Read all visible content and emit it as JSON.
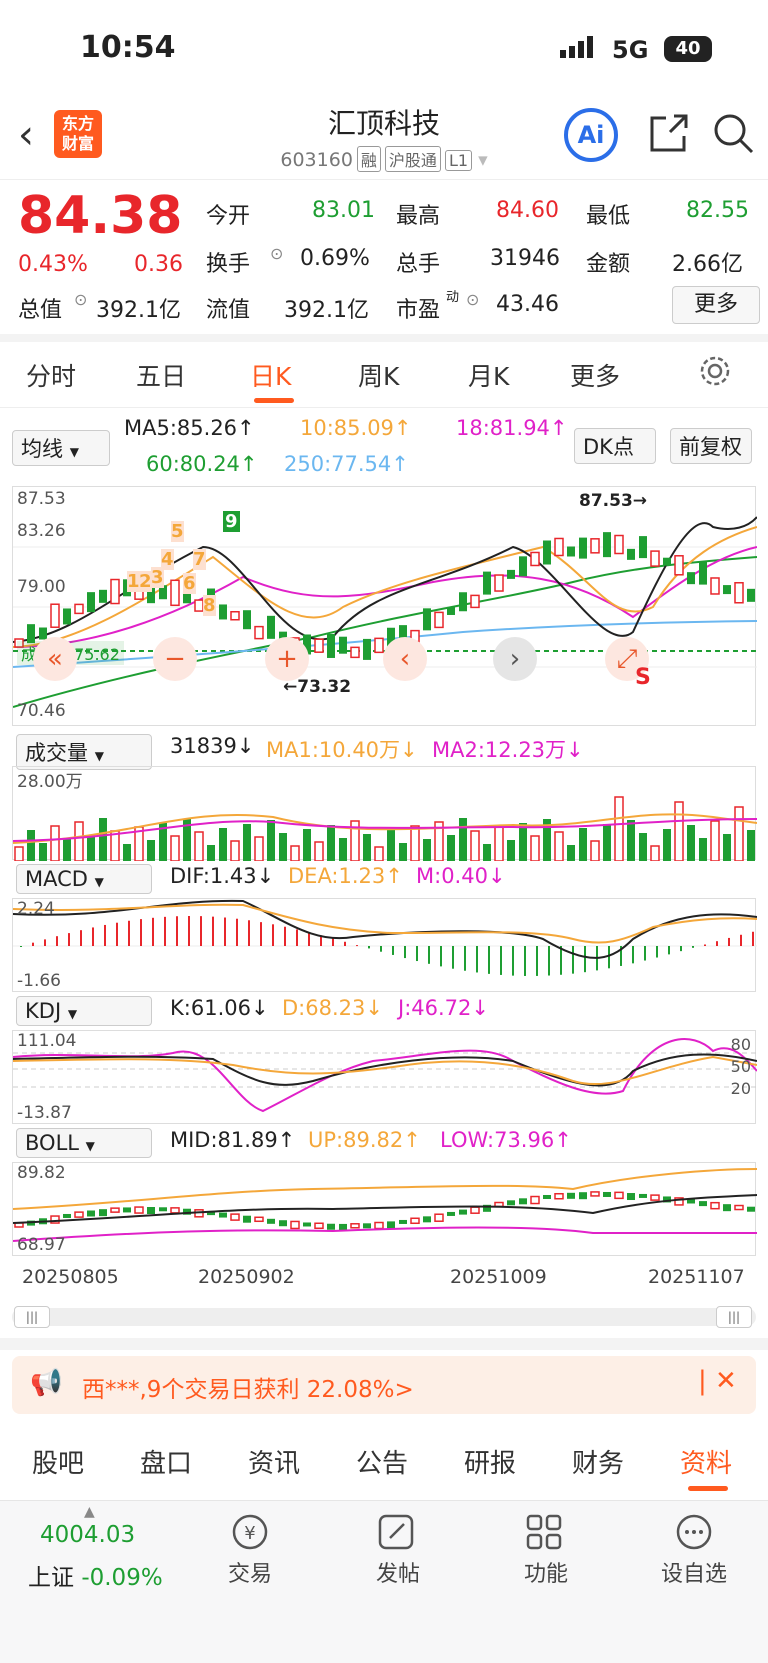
{
  "status_bar": {
    "time": "10:54",
    "network": "5G",
    "battery": "40"
  },
  "header": {
    "logo_line1": "东方",
    "logo_line2": "财富",
    "title": "汇顶科技",
    "code": "603160",
    "tags": [
      "融",
      "沪股通",
      "L1"
    ],
    "ai_label": "Ai"
  },
  "quote": {
    "price": "84.38",
    "change_pct": "0.43%",
    "change": "0.36",
    "open_label": "今开",
    "open": "83.01",
    "high_label": "最高",
    "high": "84.60",
    "low_label": "最低",
    "low": "82.55",
    "turnover_label": "换手",
    "turnover": "0.69%",
    "volume_label": "总手",
    "volume": "31946",
    "amount_label": "金额",
    "amount": "2.66亿",
    "mcap_label": "总值",
    "mcap": "392.1亿",
    "float_label": "流值",
    "float_cap": "392.1亿",
    "pe_label": "市盈",
    "pe_sup": "动",
    "pe": "43.46",
    "more_label": "更多"
  },
  "period_tabs": [
    "分时",
    "五日",
    "日K",
    "周K",
    "月K",
    "更多"
  ],
  "active_tab_index": 2,
  "ma_bar": {
    "selector": "均线",
    "ma5": "MA5:85.26↑",
    "ma10": "10:85.09↑",
    "ma18": "18:81.94↑",
    "ma60": "60:80.24↑",
    "ma250": "250:77.54↑",
    "dk_label": "DK点",
    "adj_label": "前复权"
  },
  "kline_axis": {
    "top": "87.53",
    "mid1": "83.26",
    "mid2": "79.00",
    "bottom": "70.46"
  },
  "kline_annotations": {
    "high_marker": "87.53→",
    "low_marker": "←73.32",
    "cost_label": "成本价",
    "cost_value": "75.62",
    "s_label": "S"
  },
  "signal_numbers": [
    "1",
    "2",
    "3",
    "4",
    "5",
    "6",
    "7",
    "8",
    "9"
  ],
  "volume": {
    "selector": "成交量",
    "value": "31839↓",
    "ma1": "MA1:10.40万↓",
    "ma2": "MA2:12.23万↓",
    "axis": "28.00万"
  },
  "macd": {
    "selector": "MACD",
    "dif": "DIF:1.43↓",
    "dea": "DEA:1.23↑",
    "m": "M:0.40↓",
    "top": "2.24",
    "bottom": "-1.66"
  },
  "kdj": {
    "selector": "KDJ",
    "k": "K:61.06↓",
    "d": "D:68.23↓",
    "j": "J:46.72↓",
    "top": "111.04",
    "bottom": "-13.87",
    "l80": "80",
    "l50": "50",
    "l20": "20"
  },
  "boll": {
    "selector": "BOLL",
    "mid": "MID:81.89↑",
    "up": "UP:89.82↑",
    "low": "LOW:73.96↑",
    "top": "89.82",
    "bottom": "68.97"
  },
  "dates": [
    "20250805",
    "20250902",
    "20251009",
    "20251107"
  ],
  "banner": {
    "text": "西***,9个交易日获利 22.08%>"
  },
  "bottom_tabs": [
    "股吧",
    "盘口",
    "资讯",
    "公告",
    "研报",
    "财务",
    "资料"
  ],
  "active_bottom_index": 6,
  "nav": {
    "index_value": "4004.03",
    "index_name": "上证",
    "index_change": "-0.09%",
    "items": [
      "交易",
      "发帖",
      "功能",
      "设自选"
    ]
  },
  "colors": {
    "up": "#e8262b",
    "down": "#1e9e32",
    "accent": "#ff5a1f",
    "ai_blue": "#2b6ee8"
  }
}
